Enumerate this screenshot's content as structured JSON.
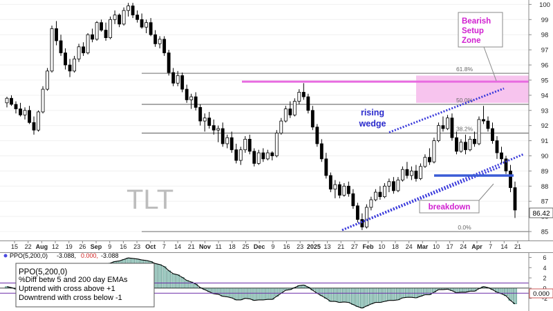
{
  "chart_data": [
    {
      "type": "candlestick",
      "symbol": "TLT",
      "ylim": [
        84.5,
        100.2
      ],
      "y_ticks": [
        85,
        86,
        87,
        88,
        89,
        90,
        91,
        92,
        93,
        94,
        95,
        96,
        97,
        98,
        99,
        100
      ],
      "last_price_label": "86.42",
      "last_price": 86.42,
      "x_tick_labels": [
        "15",
        "22",
        "Aug",
        "12",
        "19",
        "26",
        "Sep",
        "9",
        "16",
        "23",
        "Oct",
        "7",
        "14",
        "21",
        "Nov",
        "11",
        "18",
        "25",
        "Dec",
        "9",
        "16",
        "23",
        "2025",
        "13",
        "21",
        "27",
        "Feb",
        "10",
        "18",
        "24",
        "Mar",
        "10",
        "17",
        "24",
        "Apr",
        "7",
        "14",
        "21"
      ],
      "fib_levels": [
        {
          "label": "61.8%",
          "value": 95.45
        },
        {
          "label": "50.0%",
          "value": 93.4
        },
        {
          "label": "38.2%",
          "value": 91.5
        },
        {
          "label": "0.0%",
          "value": 85.0
        }
      ],
      "annotations": {
        "bearish_zone": "Bearish Setup Zone",
        "bearish_zone_lines": [
          "Bearish",
          "Setup",
          "Zone"
        ],
        "rising_wedge_lines": [
          "rising",
          "wedge"
        ],
        "breakdown": "breakdown"
      },
      "bearish_zone_range": [
        93.5,
        95.3
      ],
      "resistance_level": 94.9,
      "breakdown_level": 88.7,
      "colors": {
        "up": "#000000",
        "down": "#000000",
        "fib": "#555555",
        "zone": "#f7c4ee",
        "resistance": "#e86be0",
        "wedge": "#3a3adb",
        "breakdown_line": "#3a5bd6",
        "magenta_text": "#d020d0",
        "blue_text": "#2a2acc"
      },
      "candles": [
        [
          93.5,
          93.9,
          93.2,
          93.8
        ],
        [
          93.8,
          94.0,
          93.3,
          93.4
        ],
        [
          93.4,
          93.6,
          92.8,
          93.1
        ],
        [
          93.1,
          93.5,
          92.6,
          92.7
        ],
        [
          92.7,
          93.2,
          92.4,
          93.0
        ],
        [
          93.0,
          93.3,
          92.1,
          92.2
        ],
        [
          92.2,
          92.6,
          91.4,
          91.7
        ],
        [
          91.7,
          93.0,
          91.6,
          92.9
        ],
        [
          92.9,
          94.6,
          92.8,
          94.4
        ],
        [
          94.4,
          95.8,
          94.3,
          95.6
        ],
        [
          95.6,
          98.6,
          95.5,
          98.4
        ],
        [
          98.4,
          98.9,
          97.3,
          97.6
        ],
        [
          97.6,
          98.0,
          96.6,
          96.8
        ],
        [
          96.8,
          97.1,
          95.7,
          96.0
        ],
        [
          96.0,
          96.4,
          95.2,
          95.6
        ],
        [
          95.6,
          96.6,
          95.5,
          96.4
        ],
        [
          96.4,
          97.4,
          96.2,
          97.2
        ],
        [
          97.2,
          97.5,
          96.6,
          96.8
        ],
        [
          96.8,
          98.1,
          96.7,
          98.0
        ],
        [
          98.0,
          98.4,
          97.5,
          97.7
        ],
        [
          97.7,
          98.9,
          97.6,
          98.8
        ],
        [
          98.8,
          99.0,
          98.2,
          98.3
        ],
        [
          98.3,
          98.8,
          97.6,
          97.8
        ],
        [
          97.8,
          99.2,
          97.7,
          99.0
        ],
        [
          99.0,
          99.6,
          98.7,
          99.3
        ],
        [
          99.3,
          99.4,
          98.5,
          98.7
        ],
        [
          98.7,
          99.8,
          98.6,
          99.6
        ],
        [
          99.6,
          100.1,
          99.2,
          99.9
        ],
        [
          99.9,
          100.1,
          99.1,
          99.3
        ],
        [
          99.3,
          99.6,
          98.8,
          99.0
        ],
        [
          99.0,
          99.4,
          98.4,
          98.5
        ],
        [
          98.5,
          99.0,
          98.1,
          98.8
        ],
        [
          98.8,
          99.1,
          97.9,
          98.0
        ],
        [
          98.0,
          98.3,
          97.2,
          97.4
        ],
        [
          97.4,
          97.9,
          97.1,
          97.7
        ],
        [
          97.7,
          97.9,
          96.6,
          96.8
        ],
        [
          96.8,
          97.0,
          95.3,
          95.5
        ],
        [
          95.5,
          95.8,
          94.6,
          94.8
        ],
        [
          94.8,
          95.6,
          94.6,
          95.3
        ],
        [
          95.3,
          95.5,
          94.2,
          94.4
        ],
        [
          94.4,
          94.7,
          93.5,
          93.7
        ],
        [
          93.7,
          94.1,
          93.1,
          93.9
        ],
        [
          93.9,
          94.2,
          93.0,
          93.2
        ],
        [
          93.2,
          93.4,
          92.0,
          92.3
        ],
        [
          92.3,
          92.8,
          91.6,
          92.5
        ],
        [
          92.5,
          92.9,
          91.8,
          92.0
        ],
        [
          92.0,
          92.4,
          91.4,
          91.7
        ],
        [
          91.7,
          92.0,
          90.9,
          91.8
        ],
        [
          91.8,
          92.2,
          90.6,
          90.8
        ],
        [
          90.8,
          91.4,
          90.5,
          91.2
        ],
        [
          91.2,
          91.6,
          90.2,
          90.4
        ],
        [
          90.4,
          90.8,
          89.5,
          89.7
        ],
        [
          89.7,
          90.6,
          89.4,
          90.4
        ],
        [
          90.4,
          91.3,
          90.2,
          91.1
        ],
        [
          91.1,
          91.4,
          90.1,
          90.3
        ],
        [
          90.3,
          90.5,
          89.3,
          89.5
        ],
        [
          89.5,
          90.4,
          89.4,
          90.2
        ],
        [
          90.2,
          90.5,
          89.6,
          89.8
        ],
        [
          89.8,
          90.4,
          89.7,
          90.2
        ],
        [
          90.2,
          90.3,
          89.7,
          90.0
        ],
        [
          90.0,
          91.7,
          89.9,
          91.5
        ],
        [
          91.5,
          92.5,
          91.4,
          92.3
        ],
        [
          92.3,
          93.3,
          92.2,
          93.1
        ],
        [
          93.1,
          93.6,
          92.5,
          92.7
        ],
        [
          92.7,
          93.8,
          92.6,
          93.6
        ],
        [
          93.6,
          94.4,
          93.4,
          94.2
        ],
        [
          94.2,
          94.8,
          93.7,
          93.9
        ],
        [
          93.9,
          94.1,
          92.8,
          93.0
        ],
        [
          93.0,
          93.3,
          91.7,
          91.9
        ],
        [
          91.9,
          92.1,
          90.6,
          90.8
        ],
        [
          90.8,
          91.1,
          89.6,
          89.8
        ],
        [
          89.8,
          90.2,
          88.5,
          88.7
        ],
        [
          88.7,
          88.9,
          87.6,
          87.8
        ],
        [
          87.8,
          88.4,
          87.2,
          88.1
        ],
        [
          88.1,
          88.3,
          87.2,
          87.4
        ],
        [
          87.4,
          88.2,
          87.3,
          88.0
        ],
        [
          88.0,
          88.3,
          87.3,
          87.5
        ],
        [
          87.5,
          87.8,
          86.5,
          86.7
        ],
        [
          86.7,
          86.9,
          85.6,
          85.8
        ],
        [
          85.8,
          86.2,
          85.1,
          85.3
        ],
        [
          85.3,
          86.8,
          85.2,
          86.6
        ],
        [
          86.6,
          87.3,
          86.4,
          87.1
        ],
        [
          87.1,
          87.8,
          87.0,
          87.6
        ],
        [
          87.6,
          88.0,
          87.1,
          87.3
        ],
        [
          87.3,
          88.2,
          87.2,
          88.0
        ],
        [
          88.0,
          88.5,
          87.6,
          88.3
        ],
        [
          88.3,
          88.6,
          87.5,
          87.7
        ],
        [
          87.7,
          88.6,
          87.6,
          88.4
        ],
        [
          88.4,
          89.3,
          88.3,
          89.1
        ],
        [
          89.1,
          89.6,
          88.5,
          88.7
        ],
        [
          88.7,
          89.3,
          88.4,
          89.0
        ],
        [
          89.0,
          89.4,
          88.3,
          88.5
        ],
        [
          88.5,
          89.5,
          88.4,
          89.3
        ],
        [
          89.3,
          90.1,
          89.2,
          89.9
        ],
        [
          89.9,
          90.5,
          89.4,
          89.6
        ],
        [
          89.6,
          91.2,
          89.5,
          91.0
        ],
        [
          91.0,
          92.2,
          90.9,
          92.0
        ],
        [
          92.0,
          92.6,
          91.6,
          91.8
        ],
        [
          91.8,
          92.7,
          91.7,
          92.5
        ],
        [
          92.5,
          92.8,
          91.0,
          91.2
        ],
        [
          91.2,
          91.6,
          90.1,
          90.3
        ],
        [
          90.3,
          91.1,
          90.2,
          90.9
        ],
        [
          90.9,
          91.4,
          90.1,
          90.4
        ],
        [
          90.4,
          91.3,
          90.3,
          91.1
        ],
        [
          91.1,
          91.6,
          90.6,
          90.8
        ],
        [
          90.8,
          92.6,
          90.7,
          92.4
        ],
        [
          92.4,
          93.3,
          92.1,
          92.3
        ],
        [
          92.3,
          92.6,
          91.6,
          91.8
        ],
        [
          91.8,
          92.2,
          90.8,
          91.0
        ],
        [
          91.0,
          91.3,
          89.8,
          90.2
        ],
        [
          90.2,
          90.6,
          89.5,
          89.8
        ],
        [
          89.8,
          90.0,
          88.8,
          89.0
        ],
        [
          89.0,
          89.4,
          87.6,
          87.9
        ],
        [
          87.9,
          88.3,
          85.9,
          86.42
        ]
      ]
    },
    {
      "type": "line",
      "indicator": "PPO(5,200,0)",
      "header_label": "PPO(5,200,0)",
      "header_values": [
        "-3.088,",
        "0.000,",
        "-3.088"
      ],
      "value_badge": "0.000",
      "y_ticks": [
        6,
        4,
        2,
        0,
        -2
      ],
      "ylim": [
        -4.2,
        6.6
      ],
      "reference_lines": [
        1,
        -1
      ],
      "legend_lines": [
        "PPO(5,200,0)",
        "%Diff betw 5 and 200 day EMAs",
        "Uptrend with cross above +1",
        "Downtrend with cross below -1"
      ],
      "values": [
        0.3,
        0.1,
        -0.2,
        -0.5,
        -0.4,
        -0.7,
        -1.0,
        -0.6,
        0.2,
        1.2,
        2.8,
        3.4,
        3.6,
        3.4,
        3.2,
        3.4,
        3.7,
        3.8,
        4.1,
        4.3,
        4.6,
        4.7,
        4.6,
        4.9,
        5.2,
        5.3,
        5.6,
        5.9,
        5.8,
        5.7,
        5.5,
        5.4,
        5.2,
        4.8,
        4.6,
        4.2,
        3.4,
        2.8,
        2.6,
        2.1,
        1.5,
        1.2,
        0.8,
        0.1,
        -0.3,
        -0.7,
        -1.1,
        -1.2,
        -1.6,
        -1.7,
        -1.9,
        -2.3,
        -2.3,
        -2.0,
        -2.1,
        -2.4,
        -2.3,
        -2.3,
        -2.2,
        -2.2,
        -1.6,
        -1.0,
        -0.4,
        -0.3,
        0.1,
        0.5,
        0.6,
        0.2,
        -0.4,
        -1.0,
        -1.5,
        -2.0,
        -2.6,
        -2.6,
        -2.8,
        -2.7,
        -2.8,
        -3.2,
        -3.6,
        -3.9,
        -3.5,
        -3.1,
        -2.8,
        -2.8,
        -2.6,
        -2.4,
        -2.4,
        -2.3,
        -1.9,
        -1.8,
        -1.8,
        -1.9,
        -1.6,
        -1.3,
        -1.3,
        -0.8,
        -0.3,
        -0.3,
        -0.2,
        -0.5,
        -0.9,
        -0.8,
        -0.8,
        -0.6,
        -0.6,
        -0.1,
        0.3,
        0.1,
        -0.3,
        -0.8,
        -1.1,
        -1.5,
        -2.4,
        -3.088
      ]
    }
  ]
}
